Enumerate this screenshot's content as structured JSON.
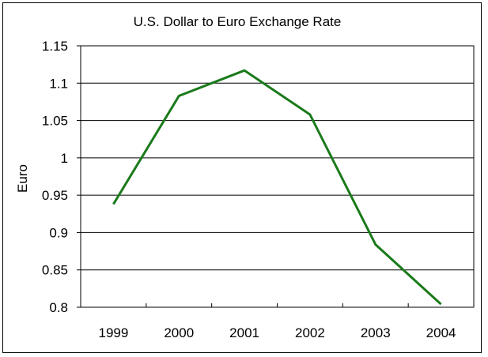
{
  "chart_data": {
    "type": "line",
    "title": "U.S. Dollar to Euro Exchange Rate",
    "xlabel": "",
    "ylabel": "Euro",
    "categories": [
      "1999",
      "2000",
      "2001",
      "2002",
      "2003",
      "2004"
    ],
    "series": [
      {
        "values": [
          0.938,
          1.083,
          1.117,
          1.058,
          0.884,
          0.804
        ],
        "color": "#1a7a1a"
      }
    ],
    "ylim": [
      0.8,
      1.15
    ],
    "yticks": [
      "0.8",
      "0.85",
      "0.9",
      "0.95",
      "1",
      "1.05",
      "1.1",
      "1.15"
    ],
    "grid": true,
    "legend": "none"
  }
}
